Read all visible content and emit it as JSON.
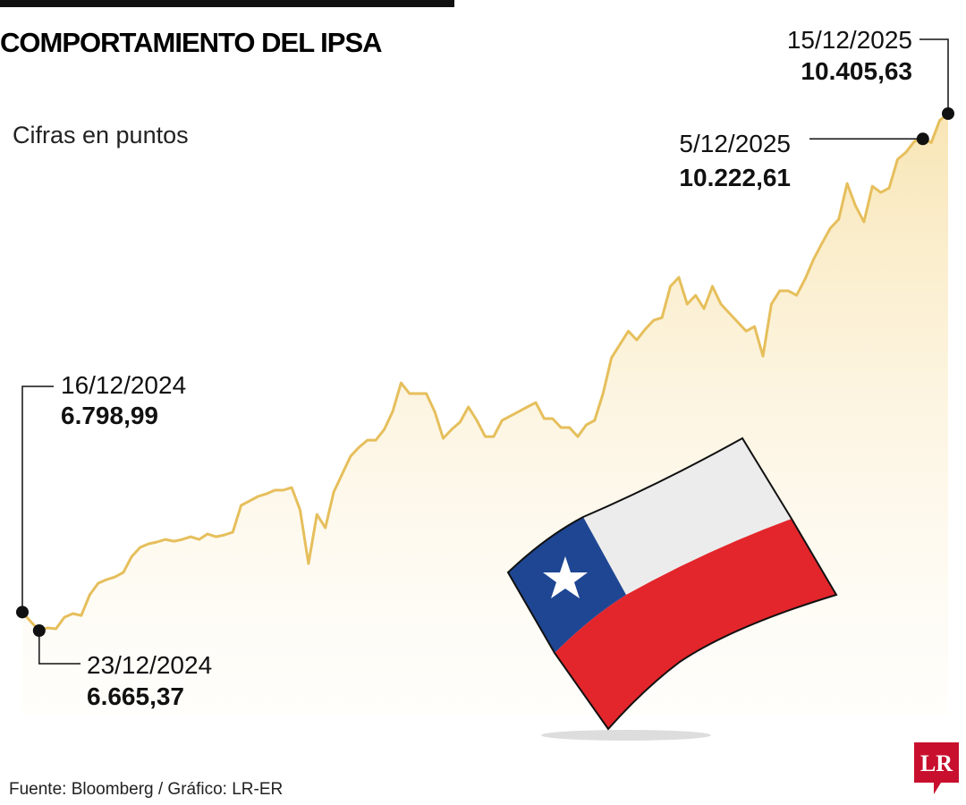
{
  "title": "COMPORTAMIENTO DEL IPSA",
  "logo": "LR",
  "chart_data": {
    "type": "line",
    "subtitle": "Cifras en puntos",
    "source": "Fuente: Bloomberg / Gráfico: LR-ER",
    "color": "#e6bf5c",
    "categories": [
      "16/12/2024",
      null,
      "23/12/2024",
      null,
      null,
      null,
      null,
      null,
      null,
      null,
      null,
      null,
      null,
      null,
      null,
      null,
      null,
      null,
      null,
      null,
      null,
      null,
      null,
      null,
      null,
      null,
      null,
      null,
      null,
      null,
      null,
      null,
      null,
      null,
      null,
      null,
      null,
      null,
      null,
      null,
      null,
      null,
      null,
      null,
      null,
      null,
      null,
      null,
      null,
      null,
      null,
      null,
      null,
      null,
      null,
      null,
      null,
      null,
      null,
      null,
      null,
      null,
      null,
      null,
      null,
      null,
      null,
      null,
      null,
      null,
      null,
      null,
      null,
      null,
      null,
      null,
      null,
      null,
      null,
      null,
      null,
      null,
      null,
      null,
      null,
      null,
      null,
      null,
      null,
      null,
      null,
      null,
      null,
      null,
      null,
      null,
      null,
      null,
      null,
      null,
      null,
      null,
      null,
      null,
      null,
      null,
      null,
      "5/12/2025",
      null,
      null,
      "15/12/2025"
    ],
    "values": [
      6798.99,
      6730,
      6665.37,
      6685,
      6678,
      6762,
      6788,
      6775,
      6924,
      7008,
      7034,
      7053,
      7086,
      7202,
      7267,
      7293,
      7306,
      7325,
      7312,
      7325,
      7344,
      7325,
      7364,
      7344,
      7357,
      7377,
      7571,
      7603,
      7636,
      7655,
      7681,
      7681,
      7700,
      7538,
      7150,
      7506,
      7409,
      7668,
      7797,
      7927,
      7992,
      8043,
      8043,
      8121,
      8250,
      8457,
      8380,
      8380,
      8380,
      8250,
      8056,
      8121,
      8173,
      8283,
      8186,
      8069,
      8069,
      8186,
      8218,
      8250,
      8283,
      8315,
      8199,
      8199,
      8134,
      8134,
      8069,
      8153,
      8186,
      8380,
      8638,
      8735,
      8832,
      8768,
      8845,
      8910,
      8929,
      9156,
      9221,
      9027,
      9091,
      8994,
      9156,
      9027,
      8962,
      8897,
      8832,
      8865,
      8651,
      9027,
      9124,
      9124,
      9091,
      9208,
      9350,
      9467,
      9577,
      9641,
      9900,
      9738,
      9622,
      9880,
      9835,
      9867,
      10075,
      10127,
      10205,
      10222.61,
      10196,
      10357,
      10405.63
    ],
    "value_labels": [
      "6.798,99",
      null,
      "6.665,37",
      null,
      null,
      null,
      null,
      null,
      null,
      null,
      null,
      null,
      null,
      null,
      null,
      null,
      null,
      null,
      null,
      null,
      null,
      null,
      null,
      null,
      null,
      null,
      null,
      null,
      null,
      null,
      null,
      null,
      null,
      null,
      null,
      null,
      null,
      null,
      null,
      null,
      null,
      null,
      null,
      null,
      null,
      null,
      null,
      null,
      null,
      null,
      null,
      null,
      null,
      null,
      null,
      null,
      null,
      null,
      null,
      null,
      null,
      null,
      null,
      null,
      null,
      null,
      null,
      null,
      null,
      null,
      null,
      null,
      null,
      null,
      null,
      null,
      null,
      null,
      null,
      null,
      null,
      null,
      null,
      null,
      null,
      null,
      null,
      null,
      null,
      null,
      null,
      null,
      null,
      null,
      null,
      null,
      null,
      null,
      null,
      null,
      null,
      null,
      null,
      null,
      null,
      null,
      null,
      "10.222,61",
      null,
      null,
      "10.405,63"
    ]
  }
}
